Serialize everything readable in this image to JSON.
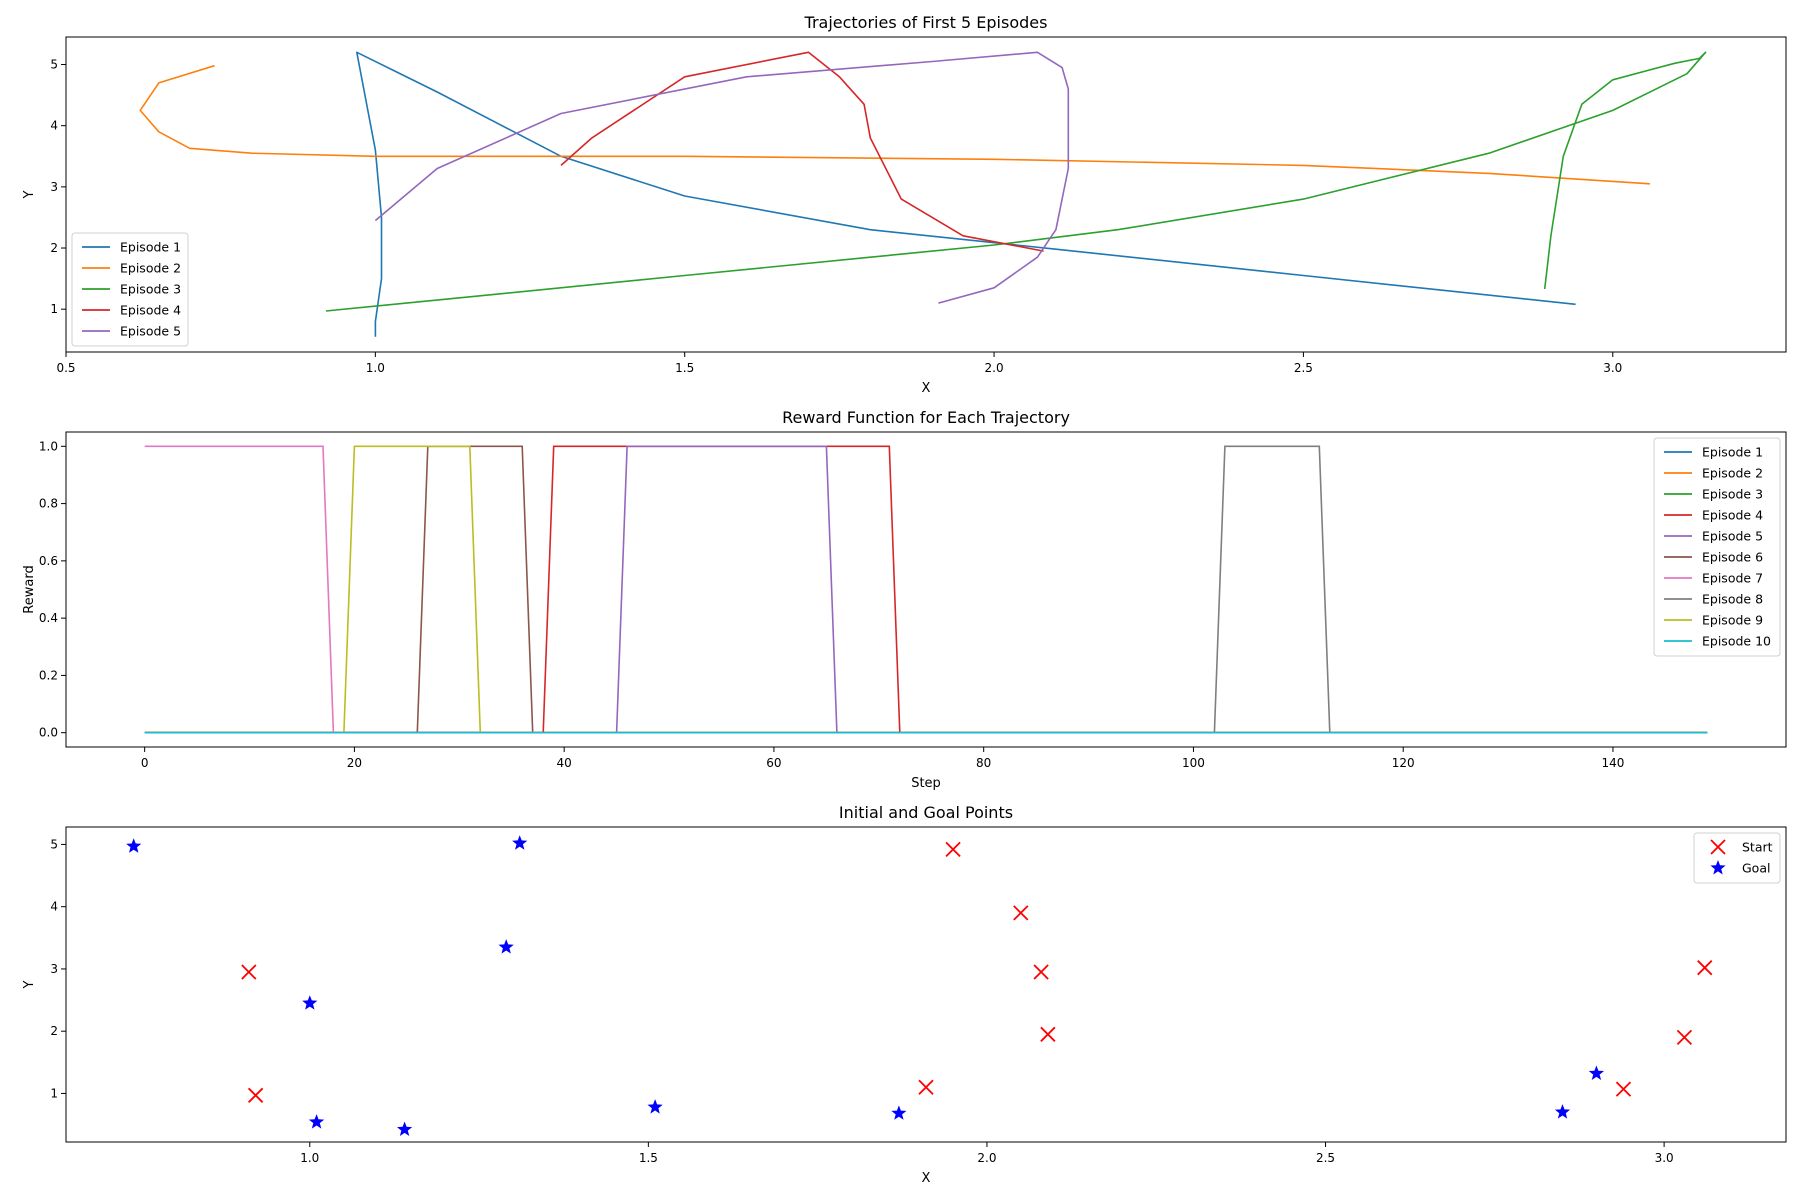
{
  "colors": [
    "#1f77b4",
    "#ff7f0e",
    "#2ca02c",
    "#d62728",
    "#9467bd",
    "#8c564b",
    "#e377c2",
    "#7f7f7f",
    "#bcbd22",
    "#17becf"
  ],
  "chart_data": [
    {
      "type": "line",
      "title": "Trajectories of First 5 Episodes",
      "xlabel": "X",
      "ylabel": "Y",
      "xlim": [
        0.5,
        3.28
      ],
      "ylim": [
        0.3,
        5.45
      ],
      "xticks": [
        "0.5",
        "1.0",
        "1.5",
        "2.0",
        "2.5",
        "3.0"
      ],
      "yticks": [
        "1",
        "2",
        "3",
        "4",
        "5"
      ],
      "legend": "lower-left",
      "series": [
        {
          "name": "Episode 1",
          "x": [
            1.0,
            1.0,
            1.01,
            1.01,
            1.0,
            0.97,
            1.03,
            1.1,
            1.3,
            1.5,
            1.8,
            2.1,
            2.5,
            2.94
          ],
          "y": [
            0.55,
            0.8,
            1.5,
            2.5,
            3.6,
            5.2,
            4.9,
            4.55,
            3.5,
            2.85,
            2.3,
            1.98,
            1.55,
            1.08
          ]
        },
        {
          "name": "Episode 2",
          "x": [
            0.74,
            0.65,
            0.62,
            0.65,
            0.7,
            0.8,
            1.0,
            1.5,
            2.0,
            2.5,
            2.8,
            3.06
          ],
          "y": [
            4.98,
            4.7,
            4.25,
            3.9,
            3.63,
            3.55,
            3.5,
            3.5,
            3.45,
            3.35,
            3.22,
            3.05
          ]
        },
        {
          "name": "Episode 3",
          "x": [
            0.92,
            1.2,
            1.5,
            1.8,
            2.0,
            2.2,
            2.5,
            2.8,
            3.0,
            3.12,
            3.15,
            3.14,
            3.1,
            3.0,
            2.95,
            2.92,
            2.9,
            2.89
          ],
          "y": [
            0.97,
            1.25,
            1.55,
            1.85,
            2.05,
            2.3,
            2.8,
            3.55,
            4.25,
            4.85,
            5.2,
            5.1,
            5.02,
            4.75,
            4.35,
            3.5,
            2.2,
            1.33
          ]
        },
        {
          "name": "Episode 4",
          "x": [
            1.3,
            1.35,
            1.5,
            1.7,
            1.75,
            1.79,
            1.8,
            1.85,
            1.95,
            2.08
          ],
          "y": [
            3.35,
            3.8,
            4.8,
            5.2,
            4.8,
            4.35,
            3.8,
            2.8,
            2.2,
            1.95
          ]
        },
        {
          "name": "Episode 5",
          "x": [
            1.0,
            1.1,
            1.3,
            1.6,
            1.9,
            2.07,
            2.11,
            2.12,
            2.12,
            2.1,
            2.07,
            2.0,
            1.91
          ],
          "y": [
            2.45,
            3.3,
            4.2,
            4.8,
            5.05,
            5.2,
            4.95,
            4.6,
            3.3,
            2.3,
            1.85,
            1.35,
            1.1
          ]
        }
      ]
    },
    {
      "type": "line",
      "title": "Reward Function for Each Trajectory",
      "xlabel": "Step",
      "ylabel": "Reward",
      "xlim": [
        -7.5,
        156.5
      ],
      "ylim": [
        -0.05,
        1.05
      ],
      "xticks": [
        "0",
        "20",
        "40",
        "60",
        "80",
        "100",
        "120",
        "140"
      ],
      "yticks": [
        "0.0",
        "0.2",
        "0.4",
        "0.6",
        "0.8",
        "1.0"
      ],
      "legend": "upper-right",
      "series": [
        {
          "name": "Episode 1",
          "pulses": []
        },
        {
          "name": "Episode 2",
          "pulses": []
        },
        {
          "name": "Episode 3",
          "pulses": []
        },
        {
          "name": "Episode 4",
          "pulses": [
            [
              38,
              72
            ]
          ]
        },
        {
          "name": "Episode 5",
          "pulses": [
            [
              45,
              66
            ]
          ]
        },
        {
          "name": "Episode 6",
          "pulses": [
            [
              26,
              37
            ]
          ]
        },
        {
          "name": "Episode 7",
          "pulses": [
            [
              -1,
              18
            ]
          ]
        },
        {
          "name": "Episode 8",
          "pulses": [
            [
              102,
              113
            ]
          ]
        },
        {
          "name": "Episode 9",
          "pulses": [
            [
              19,
              32
            ]
          ]
        },
        {
          "name": "Episode 10",
          "pulses": []
        }
      ]
    },
    {
      "type": "scatter",
      "title": "Initial and Goal Points",
      "xlabel": "X",
      "ylabel": "Y",
      "xlim": [
        0.64,
        3.18
      ],
      "ylim": [
        0.22,
        5.28
      ],
      "xticks": [
        "1.0",
        "1.5",
        "2.0",
        "2.5",
        "3.0"
      ],
      "yticks": [
        "1",
        "2",
        "3",
        "4",
        "5"
      ],
      "legend": "upper-right",
      "series": [
        {
          "name": "Start",
          "color": "#ff0000",
          "marker": "x",
          "x": [
            0.91,
            0.92,
            1.91,
            1.95,
            2.05,
            2.08,
            2.09,
            2.94,
            3.03,
            3.06
          ],
          "y": [
            2.95,
            0.97,
            1.1,
            4.92,
            3.9,
            2.95,
            1.95,
            1.07,
            1.9,
            3.02
          ]
        },
        {
          "name": "Goal",
          "color": "#0000ff",
          "marker": "star",
          "x": [
            0.74,
            1.0,
            1.01,
            1.14,
            1.29,
            1.31,
            1.51,
            1.87,
            2.85,
            2.9
          ],
          "y": [
            4.97,
            2.45,
            0.54,
            0.42,
            3.35,
            5.02,
            0.78,
            0.68,
            0.7,
            1.32
          ]
        }
      ]
    }
  ]
}
